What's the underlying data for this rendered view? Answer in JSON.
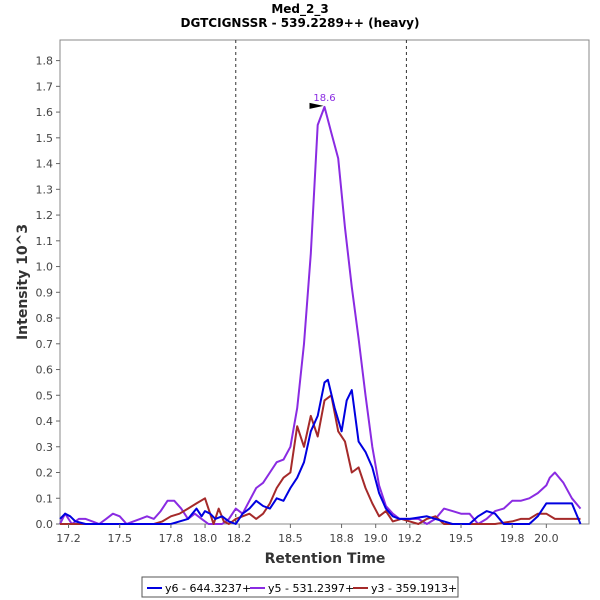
{
  "chart_data": {
    "type": "line",
    "title": "Med_2_3",
    "subtitle": "DGTCIGNSSR - 539.2289++ (heavy)",
    "xlabel": "Retention Time",
    "ylabel": "Intensity 10^3",
    "xlim": [
      17.15,
      20.25
    ],
    "ylim": [
      0,
      1.88
    ],
    "xticks": [
      "17.2",
      "17.5",
      "17.8",
      "18.0",
      "18.2",
      "18.5",
      "18.8",
      "19.0",
      "19.2",
      "19.5",
      "19.8",
      "20.0"
    ],
    "xtick_values": [
      17.2,
      17.5,
      17.8,
      18.0,
      18.2,
      18.5,
      18.8,
      19.0,
      19.2,
      19.5,
      19.8,
      20.0
    ],
    "yticks": [
      "0.0",
      "0.1",
      "0.2",
      "0.3",
      "0.4",
      "0.5",
      "0.6",
      "0.7",
      "0.8",
      "0.9",
      "1.0",
      "1.1",
      "1.2",
      "1.3",
      "1.4",
      "1.5",
      "1.6",
      "1.7",
      "1.8"
    ],
    "ytick_values": [
      0.0,
      0.1,
      0.2,
      0.3,
      0.4,
      0.5,
      0.6,
      0.7,
      0.8,
      0.9,
      1.0,
      1.1,
      1.2,
      1.3,
      1.4,
      1.5,
      1.6,
      1.7,
      1.8
    ],
    "boundaries": [
      18.18,
      19.18
    ],
    "peak_label": {
      "text": "18.6",
      "x": 18.7,
      "y": 1.62,
      "color": "#8a2be2"
    },
    "series": [
      {
        "name": "y6 - 644.3237+",
        "color": "#0000e0",
        "x": [
          17.15,
          17.18,
          17.21,
          17.24,
          17.3,
          17.4,
          17.5,
          17.6,
          17.7,
          17.8,
          17.85,
          17.9,
          17.95,
          17.98,
          18.0,
          18.03,
          18.06,
          18.1,
          18.14,
          18.18,
          18.22,
          18.26,
          18.3,
          18.34,
          18.38,
          18.42,
          18.46,
          18.5,
          18.54,
          18.58,
          18.62,
          18.66,
          18.7,
          18.72,
          18.76,
          18.8,
          18.83,
          18.86,
          18.9,
          18.94,
          18.98,
          19.02,
          19.06,
          19.1,
          19.14,
          19.2,
          19.3,
          19.35,
          19.4,
          19.45,
          19.5,
          19.55,
          19.6,
          19.65,
          19.7,
          19.75,
          19.8,
          19.85,
          19.9,
          19.95,
          20.0,
          20.05,
          20.1,
          20.15,
          20.2
        ],
        "y": [
          0.02,
          0.04,
          0.03,
          0.01,
          0.0,
          0.0,
          0.0,
          0.0,
          0.0,
          0.0,
          0.01,
          0.02,
          0.06,
          0.03,
          0.05,
          0.04,
          0.02,
          0.03,
          0.01,
          0.0,
          0.04,
          0.06,
          0.09,
          0.07,
          0.06,
          0.1,
          0.09,
          0.14,
          0.18,
          0.24,
          0.36,
          0.42,
          0.55,
          0.56,
          0.45,
          0.36,
          0.48,
          0.52,
          0.32,
          0.28,
          0.22,
          0.12,
          0.06,
          0.03,
          0.02,
          0.02,
          0.03,
          0.02,
          0.01,
          0.0,
          0.0,
          0.0,
          0.03,
          0.05,
          0.04,
          0.0,
          0.0,
          0.0,
          0.0,
          0.03,
          0.08,
          0.08,
          0.08,
          0.08,
          0.0
        ]
      },
      {
        "name": "y5 - 531.2397+",
        "color": "#8a2be2",
        "x": [
          17.15,
          17.18,
          17.22,
          17.26,
          17.3,
          17.34,
          17.38,
          17.42,
          17.46,
          17.5,
          17.54,
          17.58,
          17.62,
          17.66,
          17.7,
          17.74,
          17.78,
          17.82,
          17.86,
          17.9,
          17.94,
          17.98,
          18.02,
          18.06,
          18.1,
          18.14,
          18.18,
          18.22,
          18.26,
          18.3,
          18.34,
          18.38,
          18.42,
          18.46,
          18.5,
          18.54,
          18.58,
          18.62,
          18.66,
          18.7,
          18.74,
          18.78,
          18.82,
          18.86,
          18.9,
          18.94,
          18.98,
          19.02,
          19.06,
          19.1,
          19.14,
          19.2,
          19.25,
          19.3,
          19.35,
          19.4,
          19.45,
          19.5,
          19.55,
          19.6,
          19.65,
          19.7,
          19.75,
          19.8,
          19.85,
          19.9,
          19.95,
          20.0,
          20.02,
          20.05,
          20.1,
          20.15,
          20.2
        ],
        "y": [
          0.0,
          0.04,
          0.0,
          0.02,
          0.02,
          0.01,
          0.0,
          0.02,
          0.04,
          0.03,
          0.0,
          0.01,
          0.02,
          0.03,
          0.02,
          0.05,
          0.09,
          0.09,
          0.06,
          0.02,
          0.04,
          0.02,
          0.0,
          0.0,
          0.0,
          0.02,
          0.06,
          0.04,
          0.09,
          0.14,
          0.16,
          0.2,
          0.24,
          0.25,
          0.3,
          0.45,
          0.7,
          1.05,
          1.55,
          1.62,
          1.52,
          1.42,
          1.15,
          0.92,
          0.72,
          0.5,
          0.3,
          0.15,
          0.07,
          0.04,
          0.02,
          0.02,
          0.02,
          0.0,
          0.02,
          0.06,
          0.05,
          0.04,
          0.04,
          0.0,
          0.02,
          0.05,
          0.06,
          0.09,
          0.09,
          0.1,
          0.12,
          0.15,
          0.18,
          0.2,
          0.16,
          0.1,
          0.06
        ]
      },
      {
        "name": "y3 - 359.1913+",
        "color": "#a52a2a",
        "x": [
          17.15,
          17.3,
          17.5,
          17.7,
          17.75,
          17.8,
          17.85,
          17.9,
          17.95,
          18.0,
          18.05,
          18.08,
          18.11,
          18.14,
          18.18,
          18.22,
          18.26,
          18.3,
          18.34,
          18.38,
          18.42,
          18.46,
          18.5,
          18.54,
          18.58,
          18.62,
          18.66,
          18.7,
          18.74,
          18.78,
          18.82,
          18.86,
          18.9,
          18.94,
          18.98,
          19.02,
          19.06,
          19.1,
          19.15,
          19.2,
          19.25,
          19.3,
          19.35,
          19.4,
          19.45,
          19.5,
          19.6,
          19.7,
          19.8,
          19.85,
          19.9,
          19.95,
          20.0,
          20.05,
          20.1,
          20.2
        ],
        "y": [
          0.0,
          0.0,
          0.0,
          0.0,
          0.01,
          0.03,
          0.04,
          0.06,
          0.08,
          0.1,
          0.0,
          0.06,
          0.01,
          0.0,
          0.02,
          0.03,
          0.04,
          0.02,
          0.04,
          0.08,
          0.14,
          0.18,
          0.2,
          0.38,
          0.3,
          0.42,
          0.34,
          0.48,
          0.5,
          0.36,
          0.32,
          0.2,
          0.22,
          0.14,
          0.08,
          0.03,
          0.05,
          0.01,
          0.02,
          0.01,
          0.0,
          0.02,
          0.03,
          0.0,
          0.0,
          0.0,
          0.0,
          0.0,
          0.01,
          0.02,
          0.02,
          0.04,
          0.04,
          0.02,
          0.02,
          0.02
        ]
      }
    ]
  }
}
